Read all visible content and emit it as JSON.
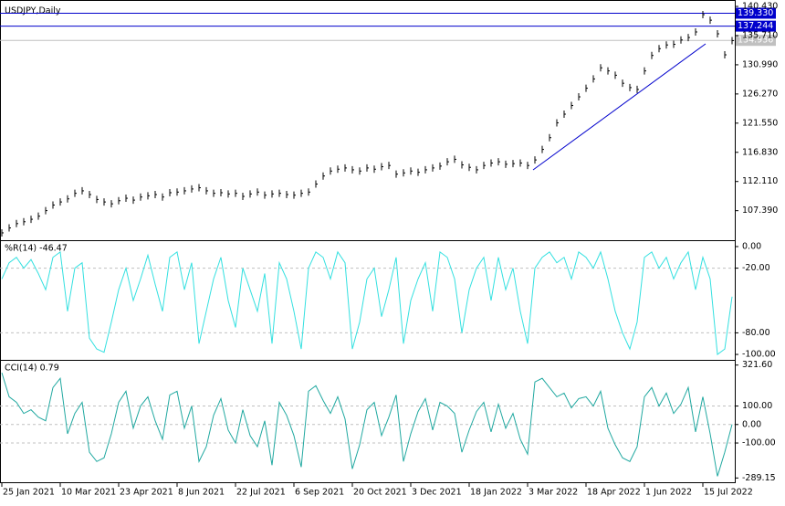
{
  "chart_data": [
    {
      "type": "bar",
      "title": "USDJPY,Daily",
      "color": "#000000",
      "ylim": [
        102.76,
        140.73
      ],
      "yticks": [
        {
          "value": 140.43,
          "label": "140.430"
        },
        {
          "value": 135.71,
          "label": "135.710"
        },
        {
          "value": 130.99,
          "label": "130.990"
        },
        {
          "value": 126.27,
          "label": "126.270"
        },
        {
          "value": 121.55,
          "label": "121.550"
        },
        {
          "value": 116.83,
          "label": "116.830"
        },
        {
          "value": 112.11,
          "label": "112.110"
        },
        {
          "value": 107.39,
          "label": "107.390"
        }
      ],
      "levels": [
        {
          "value": 139.33,
          "label": "139.330",
          "color": "#0000cc"
        },
        {
          "value": 137.244,
          "label": "137.244",
          "color": "#0000cc"
        },
        {
          "value": 134.936,
          "label": "134.936",
          "color": "#c0c0c0"
        }
      ],
      "values": [
        103.8,
        104.6,
        105.3,
        105.6,
        106.0,
        106.5,
        107.4,
        108.3,
        108.8,
        109.3,
        110.2,
        110.6,
        110.0,
        109.2,
        108.8,
        108.5,
        109.0,
        109.4,
        109.1,
        109.6,
        109.8,
        110.0,
        109.6,
        110.3,
        110.4,
        110.6,
        110.9,
        111.1,
        110.6,
        110.2,
        110.3,
        110.1,
        110.2,
        109.7,
        110.1,
        110.4,
        109.9,
        110.1,
        110.2,
        110.0,
        109.9,
        110.2,
        110.4,
        111.7,
        113.0,
        113.8,
        114.1,
        114.3,
        114.0,
        113.8,
        114.3,
        114.1,
        114.5,
        114.7,
        113.3,
        113.5,
        113.8,
        113.6,
        114.0,
        114.3,
        114.6,
        115.3,
        115.7,
        114.8,
        114.4,
        114.0,
        114.7,
        115.1,
        115.3,
        114.9,
        115.0,
        115.1,
        114.7,
        115.6,
        117.3,
        119.2,
        121.6,
        123.0,
        124.4,
        125.8,
        127.2,
        128.7,
        130.5,
        130.0,
        129.3,
        128.0,
        127.3,
        127.0,
        130.0,
        132.5,
        133.6,
        134.2,
        134.3,
        135.0,
        135.4,
        136.3,
        139.1,
        138.2,
        136.0,
        132.6,
        134.9
      ]
    },
    {
      "type": "line",
      "title": "%R(14) -46.47",
      "color": "#33e0e0",
      "ylim": [
        -104.2,
        4.2
      ],
      "yticks": [
        {
          "value": 0,
          "label": "0.00"
        },
        {
          "value": -20,
          "label": "-20.00"
        },
        {
          "value": -80,
          "label": "-80.00"
        },
        {
          "value": -100,
          "label": "-100.00"
        }
      ],
      "levels": [
        -20,
        -80
      ],
      "values": [
        -30,
        -15,
        -10,
        -20,
        -12,
        -25,
        -40,
        -10,
        -5,
        -60,
        -20,
        -15,
        -85,
        -95,
        -98,
        -70,
        -40,
        -20,
        -50,
        -30,
        -8,
        -35,
        -60,
        -10,
        -5,
        -40,
        -15,
        -90,
        -60,
        -30,
        -10,
        -50,
        -75,
        -20,
        -40,
        -60,
        -25,
        -90,
        -15,
        -30,
        -60,
        -95,
        -20,
        -5,
        -10,
        -30,
        -5,
        -15,
        -95,
        -70,
        -30,
        -20,
        -65,
        -40,
        -10,
        -90,
        -50,
        -30,
        -15,
        -60,
        -5,
        -10,
        -30,
        -80,
        -40,
        -20,
        -10,
        -50,
        -10,
        -40,
        -20,
        -60,
        -90,
        -20,
        -10,
        -5,
        -15,
        -10,
        -30,
        -5,
        -10,
        -20,
        -5,
        -30,
        -60,
        -80,
        -95,
        -70,
        -10,
        -5,
        -20,
        -10,
        -30,
        -15,
        -5,
        -40,
        -10,
        -30,
        -100,
        -95,
        -46.47
      ]
    },
    {
      "type": "line",
      "title": "CCI(14) 0.79",
      "color": "#20a8a0",
      "ylim": [
        -307.3,
        339.8
      ],
      "yticks": [
        {
          "value": 321.6,
          "label": "321.60"
        },
        {
          "value": 100,
          "label": "100.00"
        },
        {
          "value": 0,
          "label": "0.00"
        },
        {
          "value": -100,
          "label": "-100.00"
        },
        {
          "value": -289.15,
          "label": "-289.15"
        }
      ],
      "levels": [
        100,
        0,
        -100
      ],
      "xticks": [
        {
          "value": 0,
          "label": "25 Jan 2021"
        },
        {
          "value": 8,
          "label": "10 Mar 2021"
        },
        {
          "value": 16,
          "label": "23 Apr 2021"
        },
        {
          "value": 24,
          "label": "8 Jun 2021"
        },
        {
          "value": 32,
          "label": "22 Jul 2021"
        },
        {
          "value": 40,
          "label": "6 Sep 2021"
        },
        {
          "value": 48,
          "label": "20 Oct 2021"
        },
        {
          "value": 56,
          "label": "3 Dec 2021"
        },
        {
          "value": 64,
          "label": "18 Jan 2022"
        },
        {
          "value": 72,
          "label": "3 Mar 2022"
        },
        {
          "value": 80,
          "label": "18 Apr 2022"
        },
        {
          "value": 88,
          "label": "1 Jun 2022"
        },
        {
          "value": 96,
          "label": "15 Jul 2022"
        }
      ],
      "values": [
        280,
        150,
        120,
        60,
        80,
        40,
        20,
        200,
        250,
        -50,
        60,
        120,
        -150,
        -200,
        -180,
        -50,
        120,
        180,
        -20,
        100,
        150,
        20,
        -80,
        160,
        180,
        -20,
        100,
        -200,
        -120,
        50,
        140,
        -30,
        -100,
        80,
        -60,
        -120,
        20,
        -220,
        120,
        50,
        -60,
        -230,
        180,
        210,
        130,
        60,
        150,
        30,
        -240,
        -110,
        80,
        120,
        -60,
        40,
        160,
        -200,
        -50,
        70,
        140,
        -30,
        120,
        100,
        60,
        -150,
        -30,
        70,
        120,
        -40,
        110,
        -20,
        60,
        -80,
        -160,
        230,
        250,
        200,
        150,
        170,
        90,
        140,
        150,
        100,
        180,
        -20,
        -110,
        -180,
        -200,
        -120,
        150,
        200,
        100,
        170,
        60,
        110,
        200,
        -40,
        150,
        -50,
        -280,
        -150,
        0.79
      ]
    }
  ]
}
